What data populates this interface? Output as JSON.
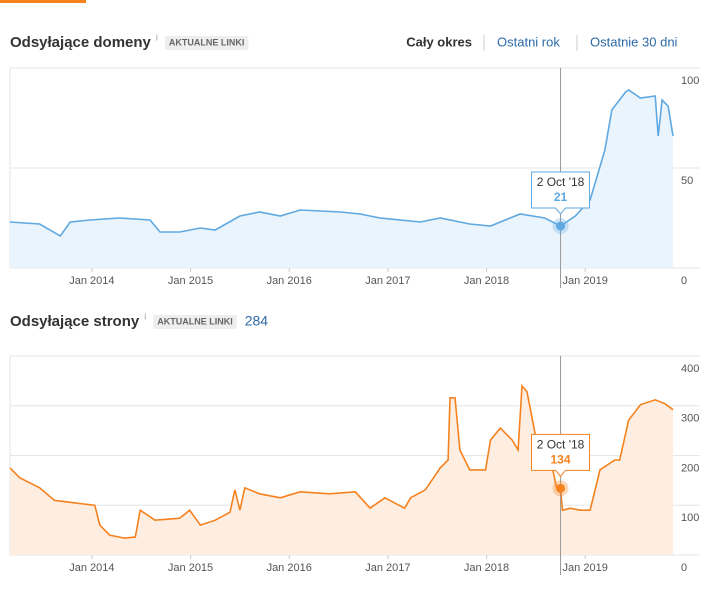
{
  "tabs": [
    "Cały okres",
    "Ostatni rok",
    "Ostatnie 30 dni"
  ],
  "chart_data": [
    {
      "type": "line",
      "title": "Odsyłające domeny",
      "info": "i",
      "badge": "AKTUALNE LINKI",
      "color": "#5fa8e0",
      "fill": "#eaf4fc",
      "x": [
        2013.17,
        2013.47,
        2013.68,
        2013.78,
        2013.98,
        2014.28,
        2014.59,
        2014.69,
        2014.89,
        2015.1,
        2015.25,
        2015.5,
        2015.7,
        2015.91,
        2016.11,
        2016.52,
        2016.72,
        2016.92,
        2017.33,
        2017.53,
        2017.83,
        2018.04,
        2018.34,
        2018.59,
        2018.75,
        2018.9,
        2019.05,
        2019.2,
        2019.27,
        2019.41,
        2019.44,
        2019.56,
        2019.71,
        2019.74,
        2019.78,
        2019.84,
        2019.89
      ],
      "values": [
        23,
        22,
        16,
        23,
        24,
        25,
        24,
        18,
        18,
        20,
        19,
        26,
        28,
        26,
        29,
        28,
        27,
        25,
        23,
        25,
        22,
        21,
        27,
        25,
        21,
        26,
        34,
        59,
        79,
        88,
        89,
        85,
        86,
        66,
        84,
        81,
        66
      ],
      "xlim": [
        2013.17,
        2019.89
      ],
      "xticks": [
        {
          "value": 2014,
          "label": "Jan 2014"
        },
        {
          "value": 2015,
          "label": "Jan 2015"
        },
        {
          "value": 2016,
          "label": "Jan 2016"
        },
        {
          "value": 2017,
          "label": "Jan 2017"
        },
        {
          "value": 2018,
          "label": "Jan 2018"
        },
        {
          "value": 2019,
          "label": "Jan 2019"
        }
      ],
      "ylim": [
        0,
        100
      ],
      "yticks": [
        0,
        50,
        100
      ],
      "grid": true,
      "tooltip": {
        "label": "2 Oct '18",
        "x": 2018.75,
        "value": 21
      }
    },
    {
      "type": "line",
      "title": "Odsyłające strony",
      "info": "i",
      "badge": "AKTUALNE LINKI",
      "total": "284",
      "color": "#f5821f",
      "fill": "#fdeee1",
      "x": [
        2013.17,
        2013.27,
        2013.47,
        2013.62,
        2013.78,
        2014.03,
        2014.08,
        2014.18,
        2014.33,
        2014.44,
        2014.49,
        2014.64,
        2014.89,
        2014.99,
        2015.1,
        2015.25,
        2015.4,
        2015.45,
        2015.5,
        2015.55,
        2015.7,
        2015.91,
        2016.11,
        2016.41,
        2016.67,
        2016.82,
        2016.97,
        2017.17,
        2017.23,
        2017.38,
        2017.53,
        2017.61,
        2017.63,
        2017.68,
        2017.73,
        2017.83,
        2017.99,
        2018.04,
        2018.14,
        2018.26,
        2018.32,
        2018.36,
        2018.41,
        2018.54,
        2018.65,
        2018.71,
        2018.75,
        2018.77,
        2018.85,
        2018.95,
        2019.05,
        2019.15,
        2019.3,
        2019.35,
        2019.44,
        2019.56,
        2019.71,
        2019.81,
        2019.89
      ],
      "values": [
        175,
        155,
        135,
        110,
        106,
        100,
        60,
        40,
        34,
        36,
        90,
        70,
        74,
        90,
        60,
        70,
        86,
        131,
        90,
        135,
        123,
        115,
        127,
        123,
        127,
        94,
        115,
        94,
        115,
        131,
        175,
        191,
        316,
        316,
        211,
        171,
        171,
        231,
        255,
        231,
        211,
        340,
        328,
        195,
        191,
        135,
        134,
        90,
        94,
        90,
        90,
        171,
        191,
        191,
        271,
        302,
        312,
        304,
        292
      ],
      "xlim": [
        2013.17,
        2019.89
      ],
      "xticks": [
        {
          "value": 2014,
          "label": "Jan 2014"
        },
        {
          "value": 2015,
          "label": "Jan 2015"
        },
        {
          "value": 2016,
          "label": "Jan 2016"
        },
        {
          "value": 2017,
          "label": "Jan 2017"
        },
        {
          "value": 2018,
          "label": "Jan 2018"
        },
        {
          "value": 2019,
          "label": "Jan 2019"
        }
      ],
      "ylim": [
        0,
        400
      ],
      "yticks": [
        0,
        100,
        200,
        300,
        400
      ],
      "grid": true,
      "tooltip": {
        "label": "2 Oct '18",
        "x": 2018.75,
        "value": 134
      }
    }
  ]
}
